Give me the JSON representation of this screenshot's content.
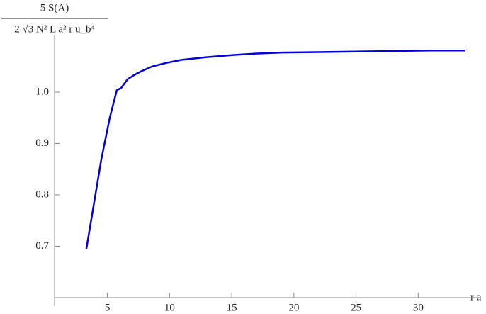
{
  "chart_data": {
    "type": "line",
    "ylabel_numerator": "5 S(A)",
    "ylabel_denominator": "2 √3 N² L a² r u_b⁴",
    "xlabel": "r a",
    "x": [
      3.31,
      4.51,
      5.19,
      5.76,
      6.1,
      6.62,
      7.2,
      7.76,
      8.6,
      9.75,
      11,
      12.9,
      15,
      16.9,
      19,
      21.9,
      25,
      28,
      31,
      33.8
    ],
    "series": [
      {
        "name": "S(A)",
        "color": "#0000dd",
        "values": [
          0.695,
          0.869,
          0.95,
          1.004,
          1.008,
          1.025,
          1.034,
          1.041,
          1.05,
          1.057,
          1.063,
          1.068,
          1.072,
          1.075,
          1.077,
          1.078,
          1.079,
          1.08,
          1.081,
          1.081
        ]
      }
    ],
    "xlim": [
      0.75,
      33.8
    ],
    "ylim": [
      0.6,
      1.1
    ],
    "xticks": [
      5,
      10,
      15,
      20,
      25,
      30
    ],
    "yticks": [
      0.7,
      0.8,
      0.9,
      {
        "value": 1,
        "label": "1.0"
      }
    ]
  }
}
